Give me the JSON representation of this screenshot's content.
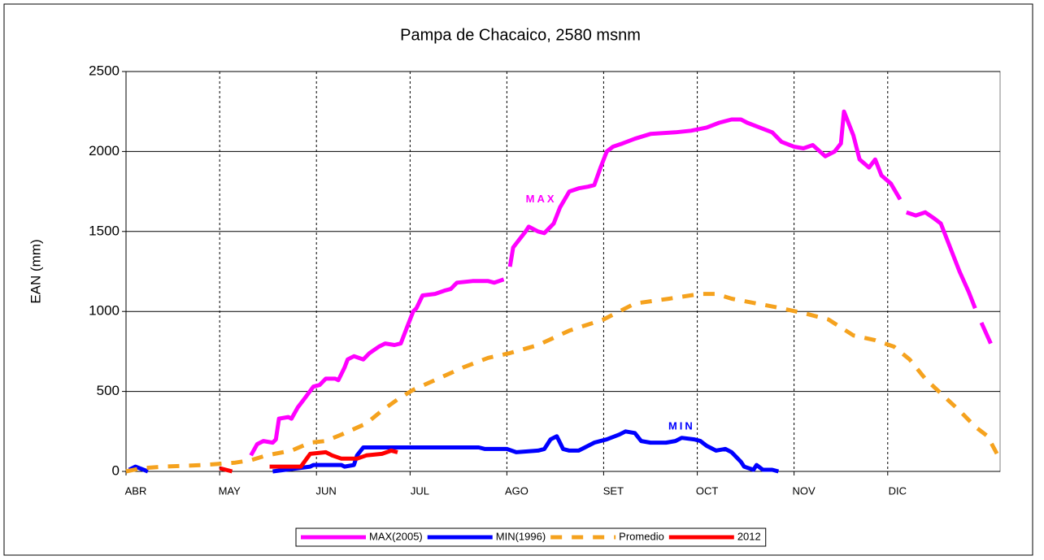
{
  "chart_data": {
    "type": "line",
    "title": "Pampa de Chacaico, 2580 msnm",
    "y_label": "EAN (mm)",
    "annotations": [
      {
        "text": "MAX",
        "color": "#ff00ff",
        "x": 133,
        "y": 1700
      },
      {
        "text": "MIN",
        "color": "#0000ff",
        "x": 178,
        "y": 280
      }
    ],
    "xlim": [
      0,
      280
    ],
    "xticks": [
      {
        "value": 0,
        "label": "ABR"
      },
      {
        "value": 30,
        "label": "MAY"
      },
      {
        "value": 61,
        "label": "JUN"
      },
      {
        "value": 91,
        "label": "JUL"
      },
      {
        "value": 122,
        "label": "AGO"
      },
      {
        "value": 153,
        "label": "SET"
      },
      {
        "value": 183,
        "label": "OCT"
      },
      {
        "value": 214,
        "label": "NOV"
      },
      {
        "value": 244,
        "label": "DIC"
      }
    ],
    "ylim": [
      0,
      2500
    ],
    "yticks": [
      0,
      500,
      1000,
      1500,
      2000,
      2500
    ],
    "grid": true,
    "legend": "bottom",
    "series": [
      {
        "name": "MAX(2005)",
        "color": "#ff00ff",
        "dashed": false,
        "x": [
          40,
          42,
          44,
          47,
          48,
          49,
          52,
          53,
          55,
          57,
          60,
          62,
          64,
          67,
          68,
          70,
          71,
          73,
          76,
          78,
          81,
          83,
          86,
          88,
          90,
          92,
          93,
          95,
          99,
          102,
          104,
          106,
          111,
          116,
          118,
          121,
          122,
          123,
          124,
          128,
          129,
          132,
          134,
          137,
          139,
          142,
          145,
          148,
          150,
          152,
          154,
          156,
          159,
          163,
          168,
          176,
          181,
          186,
          190,
          194,
          197,
          199,
          203,
          207,
          210,
          214,
          217,
          220,
          224,
          227,
          229,
          230,
          233,
          235,
          238,
          240,
          242,
          245,
          248,
          249,
          250,
          253,
          256,
          259,
          261,
          264,
          267,
          270,
          272,
          273,
          274,
          277
        ],
        "values": [
          100,
          170,
          190,
          180,
          200,
          330,
          340,
          330,
          400,
          450,
          530,
          540,
          580,
          580,
          570,
          650,
          700,
          720,
          700,
          740,
          780,
          800,
          790,
          800,
          900,
          1000,
          1020,
          1100,
          1110,
          1130,
          1140,
          1180,
          1190,
          1190,
          1180,
          1200,
          null,
          1280,
          1400,
          1500,
          1530,
          1500,
          1490,
          1550,
          1650,
          1750,
          1770,
          1780,
          1790,
          1900,
          2000,
          2030,
          2050,
          2080,
          2110,
          2120,
          2130,
          2150,
          2180,
          2200,
          2200,
          2180,
          2150,
          2120,
          2060,
          2030,
          2020,
          2040,
          1970,
          2000,
          2050,
          2250,
          2100,
          1950,
          1900,
          1950,
          1850,
          1800,
          1700,
          null,
          1620,
          1600,
          1620,
          1580,
          1550,
          1400,
          1250,
          1120,
          1020,
          null,
          930,
          800
        ]
      },
      {
        "name": "MIN(1996)",
        "color": "#0000ff",
        "dashed": false,
        "x": [
          1,
          3,
          7,
          20,
          47,
          59,
          60,
          69,
          70,
          73,
          74,
          76,
          90,
          113,
          115,
          122,
          125,
          132,
          134,
          136,
          138,
          140,
          142,
          145,
          147,
          150,
          154,
          158,
          160,
          163,
          165,
          168,
          173,
          176,
          178,
          182,
          184,
          186,
          189,
          192,
          194,
          197,
          198,
          201,
          202,
          204,
          207,
          209
        ],
        "values": [
          10,
          30,
          0,
          null,
          0,
          30,
          40,
          40,
          30,
          40,
          100,
          150,
          150,
          150,
          140,
          140,
          120,
          130,
          140,
          200,
          220,
          140,
          130,
          130,
          150,
          180,
          200,
          230,
          250,
          240,
          190,
          180,
          180,
          190,
          210,
          200,
          190,
          160,
          130,
          140,
          120,
          60,
          30,
          10,
          40,
          10,
          10,
          0
        ]
      },
      {
        "name": "Promedio",
        "color": "#f5a21e",
        "dashed": true,
        "x": [
          0,
          5,
          12,
          25,
          35,
          40,
          45,
          53,
          59,
          64,
          69,
          77,
          82,
          87,
          92,
          100,
          108,
          116,
          123,
          132,
          142,
          153,
          163,
          174,
          184,
          189,
          194,
          202,
          210,
          217,
          225,
          233,
          240,
          246,
          251,
          256,
          262,
          267,
          272,
          276,
          279
        ],
        "values": [
          0,
          20,
          30,
          40,
          55,
          70,
          100,
          130,
          180,
          190,
          230,
          300,
          380,
          450,
          510,
          580,
          650,
          710,
          740,
          790,
          880,
          950,
          1050,
          1080,
          1110,
          1110,
          1080,
          1050,
          1020,
          990,
          950,
          850,
          820,
          780,
          700,
          580,
          470,
          380,
          280,
          220,
          110
        ]
      },
      {
        "name": "2012",
        "color": "#ff0000",
        "dashed": false,
        "x": [
          30,
          34,
          37,
          46,
          56,
          59,
          64,
          66,
          69,
          74,
          77,
          82,
          85,
          87
        ],
        "values": [
          20,
          0,
          null,
          30,
          30,
          110,
          120,
          100,
          80,
          80,
          100,
          110,
          130,
          120
        ]
      }
    ]
  }
}
